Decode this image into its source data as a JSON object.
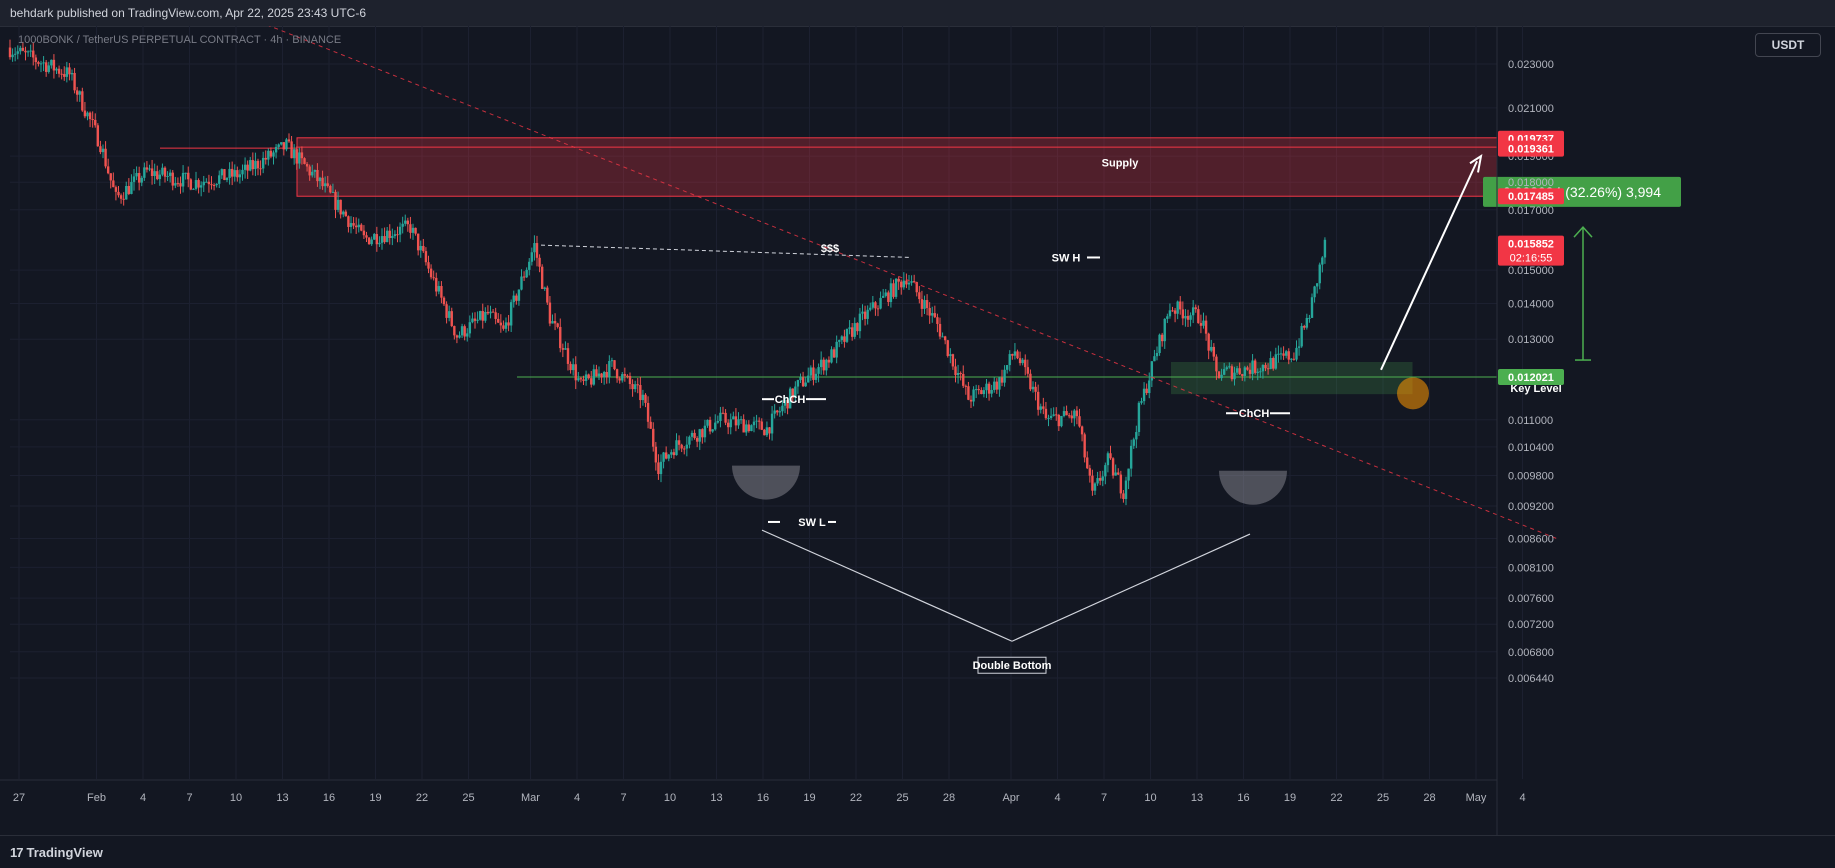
{
  "header": {
    "published_text": "behdark published on TradingView.com, Apr 22, 2025 23:43 UTC-6"
  },
  "symbol_text": "1000BONK / TetherUS PERPETUAL CONTRACT · 4h · BINANCE",
  "unit_badge": "USDT",
  "footer": {
    "logo_mark": "17",
    "brand": "TradingView"
  },
  "colors": {
    "background": "#131722",
    "up_candle": "#26a69a",
    "down_candle": "#ef5350",
    "supply_zone": "#f23645",
    "key_level": "#4caf50",
    "trendline": "#f23645",
    "measure_box": "#4caf50"
  },
  "chart_data": {
    "type": "candlestick",
    "y_axis": {
      "ticks": [
        "0.023000",
        "0.021000",
        "0.019000",
        "0.018000",
        "0.017000",
        "0.015000",
        "0.014000",
        "0.013000",
        "0.011000",
        "0.010400",
        "0.009800",
        "0.009200",
        "0.008600",
        "0.008100",
        "0.007600",
        "0.007200",
        "0.006800",
        "0.006440"
      ],
      "scale": "log"
    },
    "x_axis": {
      "ticks": [
        "27",
        "Feb",
        "4",
        "7",
        "10",
        "13",
        "16",
        "19",
        "22",
        "25",
        "Mar",
        "4",
        "7",
        "10",
        "13",
        "16",
        "19",
        "22",
        "25",
        "28",
        "Apr",
        "4",
        "7",
        "10",
        "13",
        "16",
        "19",
        "22",
        "25",
        "28",
        "May",
        "4"
      ],
      "range": [
        "2025-01-27",
        "2025-05-06"
      ]
    },
    "price_labels": [
      {
        "value": "0.019737",
        "color": "#f23645"
      },
      {
        "value": "0.019361",
        "color": "#f23645"
      },
      {
        "value": "0.017485",
        "color": "#f23645"
      },
      {
        "value": "0.015852",
        "sub": "02:16:55",
        "color": "#f23645"
      },
      {
        "value": "0.012021",
        "color": "#4caf50"
      }
    ],
    "path_anchors": [
      {
        "date": "2025-01-27",
        "price": 0.0238
      },
      {
        "date": "2025-01-31",
        "price": 0.0225
      },
      {
        "date": "2025-02-02",
        "price": 0.0195
      },
      {
        "date": "2025-02-03",
        "price": 0.0174
      },
      {
        "date": "2025-02-05",
        "price": 0.0184
      },
      {
        "date": "2025-02-08",
        "price": 0.018
      },
      {
        "date": "2025-02-11",
        "price": 0.0183
      },
      {
        "date": "2025-02-14",
        "price": 0.0194
      },
      {
        "date": "2025-02-16",
        "price": 0.0181
      },
      {
        "date": "2025-02-19",
        "price": 0.016
      },
      {
        "date": "2025-02-22",
        "price": 0.0164
      },
      {
        "date": "2025-02-25",
        "price": 0.0131
      },
      {
        "date": "2025-02-27",
        "price": 0.0137
      },
      {
        "date": "2025-02-28",
        "price": 0.0132
      },
      {
        "date": "2025-03-02",
        "price": 0.0158
      },
      {
        "date": "2025-03-03",
        "price": 0.0136
      },
      {
        "date": "2025-03-05",
        "price": 0.0118
      },
      {
        "date": "2025-03-07",
        "price": 0.0123
      },
      {
        "date": "2025-03-09",
        "price": 0.0115
      },
      {
        "date": "2025-03-10",
        "price": 0.01
      },
      {
        "date": "2025-03-11",
        "price": 0.0104
      },
      {
        "date": "2025-03-14",
        "price": 0.011
      },
      {
        "date": "2025-03-17",
        "price": 0.0108
      },
      {
        "date": "2025-03-19",
        "price": 0.0118
      },
      {
        "date": "2025-03-21",
        "price": 0.0125
      },
      {
        "date": "2025-03-23",
        "price": 0.0135
      },
      {
        "date": "2025-03-26",
        "price": 0.0148
      },
      {
        "date": "2025-03-28",
        "price": 0.0134
      },
      {
        "date": "2025-03-30",
        "price": 0.0115
      },
      {
        "date": "2025-04-01",
        "price": 0.0119
      },
      {
        "date": "2025-04-02",
        "price": 0.0127
      },
      {
        "date": "2025-04-04",
        "price": 0.011
      },
      {
        "date": "2025-04-06",
        "price": 0.0111
      },
      {
        "date": "2025-04-07",
        "price": 0.0094
      },
      {
        "date": "2025-04-08",
        "price": 0.0101
      },
      {
        "date": "2025-04-09",
        "price": 0.0095
      },
      {
        "date": "2025-04-10",
        "price": 0.0112
      },
      {
        "date": "2025-04-12",
        "price": 0.0139
      },
      {
        "date": "2025-04-14",
        "price": 0.0136
      },
      {
        "date": "2025-04-15",
        "price": 0.0121
      },
      {
        "date": "2025-04-18",
        "price": 0.0123
      },
      {
        "date": "2025-04-20",
        "price": 0.0126
      },
      {
        "date": "2025-04-21",
        "price": 0.0137
      },
      {
        "date": "2025-04-22",
        "price": 0.0158
      }
    ],
    "annotations": {
      "supply_label": "Supply",
      "supply_zone": {
        "start": "2025-02-14",
        "low": 0.017485,
        "high": 0.019737
      },
      "key_level_label": "Key Level",
      "key_level": {
        "start": "2025-02-28",
        "value": 0.012021
      },
      "key_zone": {
        "start": "2025-04-11",
        "end": "2025-04-24",
        "low": 0.0116,
        "high": 0.0124
      },
      "liquidity_label": "$$$",
      "swing_high_label": "SW H",
      "swing_low_label": "SW L",
      "choch_label_1": "ChCH",
      "choch_label_2": "ChCH",
      "pattern_label": "Double Bottom",
      "measure_label": "0.003994 (32.26%) 3,994",
      "trendline": {
        "start": {
          "date": "2025-02-13",
          "price": 0.0275
        },
        "end": {
          "date": "2025-05-06",
          "price": 0.0086
        }
      }
    }
  }
}
